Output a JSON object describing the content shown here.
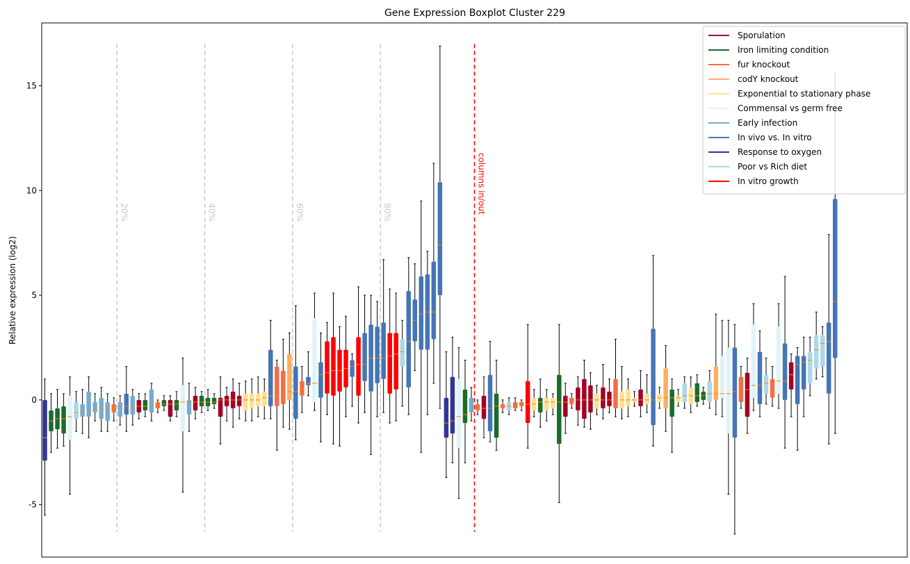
{
  "chart_data": {
    "type": "boxplot",
    "title": "Gene Expression Boxplot Cluster 229",
    "ylabel": "Relative expression (log2)",
    "xlabel": "",
    "ylim": [
      -7.5,
      18.0
    ],
    "yticks": [
      -5,
      0,
      5,
      10,
      15
    ],
    "grid": false,
    "legend_placement": "top-right",
    "legend": [
      {
        "label": "Sporulation",
        "color": "#a50026"
      },
      {
        "label": "Iron limiting condition",
        "color": "#1b6b2a"
      },
      {
        "label": "fur knockout",
        "color": "#f46d43"
      },
      {
        "label": "codY knockout",
        "color": "#fdae61"
      },
      {
        "label": "Exponential to stationary phase",
        "color": "#fee090"
      },
      {
        "label": "Commensal vs germ free",
        "color": "#e0f3f8"
      },
      {
        "label": "Early infection",
        "color": "#74add1"
      },
      {
        "label": "In vivo vs. In vitro",
        "color": "#4575b4"
      },
      {
        "label": "Response to oxygen",
        "color": "#313695"
      },
      {
        "label": "Poor vs Rich diet",
        "color": "#abd9e9"
      },
      {
        "label": "In vitro growth",
        "color": "#ff0000"
      }
    ],
    "percent_markers": [
      {
        "label": "20%",
        "box_index": 12
      },
      {
        "label": "40%",
        "box_index": 26
      },
      {
        "label": "60%",
        "box_index": 40
      },
      {
        "label": "80%",
        "box_index": 54
      }
    ],
    "columns_marker": {
      "label": "columns in/out",
      "box_index": 69,
      "color": "#ff0000"
    },
    "x_range": [
      0,
      138
    ],
    "boxes": [
      {
        "c": "#313695",
        "q1": -2.9,
        "med": -1.8,
        "q3": 0.0,
        "lo": -5.5,
        "hi": 1.0
      },
      {
        "c": "#1b6b2a",
        "q1": -1.5,
        "med": -1.0,
        "q3": -0.5,
        "lo": -2.5,
        "hi": 0.3
      },
      {
        "c": "#1b6b2a",
        "q1": -1.4,
        "med": -0.9,
        "q3": -0.4,
        "lo": -2.3,
        "hi": 0.5
      },
      {
        "c": "#1b6b2a",
        "q1": -1.6,
        "med": -0.9,
        "q3": -0.3,
        "lo": -2.2,
        "hi": 0.3
      },
      {
        "c": "#e0f3f8",
        "q1": -1.9,
        "med": -0.8,
        "q3": 0.2,
        "lo": -4.5,
        "hi": 1.1
      },
      {
        "c": "#abd9e9",
        "q1": -0.9,
        "med": -0.6,
        "q3": -0.1,
        "lo": -1.5,
        "hi": 0.4
      },
      {
        "c": "#74add1",
        "q1": -0.8,
        "med": -0.6,
        "q3": -0.2,
        "lo": -1.6,
        "hi": 0.5
      },
      {
        "c": "#74add1",
        "q1": -0.8,
        "med": -0.5,
        "q3": 0.4,
        "lo": -1.8,
        "hi": 1.1
      },
      {
        "c": "#74add1",
        "q1": -0.6,
        "med": -0.4,
        "q3": -0.1,
        "lo": -1.0,
        "hi": 0.3
      },
      {
        "c": "#74add1",
        "q1": -0.9,
        "med": -0.4,
        "q3": 0.1,
        "lo": -1.5,
        "hi": 0.6
      },
      {
        "c": "#74add1",
        "q1": -1.0,
        "med": -0.4,
        "q3": -0.1,
        "lo": -1.5,
        "hi": 0.3
      },
      {
        "c": "#f46d43",
        "q1": -0.6,
        "med": -0.4,
        "q3": -0.2,
        "lo": -1.0,
        "hi": 0.1
      },
      {
        "c": "#74add1",
        "q1": -0.8,
        "med": -0.3,
        "q3": -0.1,
        "lo": -1.2,
        "hi": 0.2
      },
      {
        "c": "#4575b4",
        "q1": -0.7,
        "med": -0.3,
        "q3": 0.3,
        "lo": -1.5,
        "hi": 1.6
      },
      {
        "c": "#74add1",
        "q1": -0.7,
        "med": -0.3,
        "q3": 0.2,
        "lo": -1.2,
        "hi": 0.5
      },
      {
        "c": "#a50026",
        "q1": -0.6,
        "med": -0.3,
        "q3": 0.0,
        "lo": -0.9,
        "hi": 0.3
      },
      {
        "c": "#1b6b2a",
        "q1": -0.5,
        "med": -0.3,
        "q3": 0.0,
        "lo": -0.8,
        "hi": 0.3
      },
      {
        "c": "#74add1",
        "q1": -0.6,
        "med": -0.2,
        "q3": 0.5,
        "lo": -1.0,
        "hi": 0.8
      },
      {
        "c": "#f46d43",
        "q1": -0.4,
        "med": -0.2,
        "q3": -0.1,
        "lo": -0.6,
        "hi": 0.0
      },
      {
        "c": "#1b6b2a",
        "q1": -0.3,
        "med": -0.2,
        "q3": 0.0,
        "lo": -0.5,
        "hi": 0.2
      },
      {
        "c": "#a50026",
        "q1": -0.8,
        "med": -0.2,
        "q3": 0.0,
        "lo": -1.0,
        "hi": 0.2
      },
      {
        "c": "#1b6b2a",
        "q1": -0.5,
        "med": -0.2,
        "q3": 0.0,
        "lo": -0.8,
        "hi": 0.4
      },
      {
        "c": "#e0f3f8",
        "q1": -1.5,
        "med": -0.1,
        "q3": 0.7,
        "lo": -4.4,
        "hi": 2.0
      },
      {
        "c": "#74add1",
        "q1": -0.7,
        "med": -0.1,
        "q3": 0.0,
        "lo": -1.5,
        "hi": 0.8
      },
      {
        "c": "#a50026",
        "q1": -0.5,
        "med": -0.1,
        "q3": 0.2,
        "lo": -0.9,
        "hi": 0.6
      },
      {
        "c": "#1b6b2a",
        "q1": -0.3,
        "med": -0.1,
        "q3": 0.2,
        "lo": -0.6,
        "hi": 0.4
      },
      {
        "c": "#1b6b2a",
        "q1": -0.3,
        "med": -0.1,
        "q3": 0.1,
        "lo": -0.5,
        "hi": 0.5
      },
      {
        "c": "#1b6b2a",
        "q1": -0.2,
        "med": -0.1,
        "q3": 0.1,
        "lo": -0.4,
        "hi": 0.3
      },
      {
        "c": "#a50026",
        "q1": -0.8,
        "med": 0.0,
        "q3": 0.1,
        "lo": -2.1,
        "hi": 1.1
      },
      {
        "c": "#a50026",
        "q1": -0.3,
        "med": 0.0,
        "q3": 0.2,
        "lo": -1.0,
        "hi": 0.6
      },
      {
        "c": "#a50026",
        "q1": -0.4,
        "med": 0.0,
        "q3": 0.4,
        "lo": -1.3,
        "hi": 1.0
      },
      {
        "c": "#a50026",
        "q1": -0.3,
        "med": 0.0,
        "q3": 0.2,
        "lo": -0.9,
        "hi": 0.8
      },
      {
        "c": "#fee090",
        "q1": -0.5,
        "med": 0.0,
        "q3": 0.3,
        "lo": -1.0,
        "hi": 0.9
      },
      {
        "c": "#fee090",
        "q1": -0.4,
        "med": 0.0,
        "q3": 0.3,
        "lo": -1.0,
        "hi": 1.0
      },
      {
        "c": "#fee090",
        "q1": -0.3,
        "med": 0.0,
        "q3": 0.3,
        "lo": -0.8,
        "hi": 1.1
      },
      {
        "c": "#fee090",
        "q1": -0.3,
        "med": 0.1,
        "q3": 0.4,
        "lo": -0.9,
        "hi": 1.0
      },
      {
        "c": "#4575b4",
        "q1": -0.3,
        "med": 0.2,
        "q3": 2.4,
        "lo": -0.9,
        "hi": 3.8
      },
      {
        "c": "#f46d43",
        "q1": -0.3,
        "med": 0.2,
        "q3": 1.6,
        "lo": -2.4,
        "hi": 1.9
      },
      {
        "c": "#f46d43",
        "q1": -0.2,
        "med": 0.3,
        "q3": 1.4,
        "lo": -1.3,
        "hi": 2.9
      },
      {
        "c": "#fdae61",
        "q1": 0.0,
        "med": 0.4,
        "q3": 2.2,
        "lo": -1.4,
        "hi": 3.2
      },
      {
        "c": "#4575b4",
        "q1": -0.9,
        "med": 0.4,
        "q3": 1.6,
        "lo": -1.9,
        "hi": 4.5
      },
      {
        "c": "#f46d43",
        "q1": 0.2,
        "med": 0.5,
        "q3": 0.9,
        "lo": -0.6,
        "hi": 1.6
      },
      {
        "c": "#4575b4",
        "q1": 0.7,
        "med": 0.8,
        "q3": 1.1,
        "lo": 0.2,
        "hi": 2.3
      },
      {
        "c": "#e0f3f8",
        "q1": -0.1,
        "med": 0.8,
        "q3": 3.9,
        "lo": -0.5,
        "hi": 5.1
      },
      {
        "c": "#4575b4",
        "q1": 0.1,
        "med": 1.2,
        "q3": 1.8,
        "lo": -2.0,
        "hi": 3.2
      },
      {
        "c": "#ff0000",
        "q1": 0.3,
        "med": 1.3,
        "q3": 2.8,
        "lo": -0.7,
        "hi": 3.7
      },
      {
        "c": "#ff0000",
        "q1": 0.2,
        "med": 1.4,
        "q3": 3.0,
        "lo": -2.1,
        "hi": 5.1
      },
      {
        "c": "#ff0000",
        "q1": 0.4,
        "med": 1.4,
        "q3": 2.4,
        "lo": -2.2,
        "hi": 3.5
      },
      {
        "c": "#ff0000",
        "q1": 0.6,
        "med": 1.5,
        "q3": 2.4,
        "lo": -0.8,
        "hi": 4.0
      },
      {
        "c": "#4575b4",
        "q1": 1.1,
        "med": 1.6,
        "q3": 1.9,
        "lo": -0.3,
        "hi": 2.2
      },
      {
        "c": "#ff0000",
        "q1": 0.2,
        "med": 1.7,
        "q3": 3.0,
        "lo": -1.1,
        "hi": 5.4
      },
      {
        "c": "#4575b4",
        "q1": 0.9,
        "med": 1.7,
        "q3": 3.2,
        "lo": -0.6,
        "hi": 5.0
      },
      {
        "c": "#4575b4",
        "q1": 0.4,
        "med": 2.0,
        "q3": 3.6,
        "lo": -2.6,
        "hi": 5.0
      },
      {
        "c": "#4575b4",
        "q1": 0.8,
        "med": 2.0,
        "q3": 3.5,
        "lo": -0.8,
        "hi": 4.7
      },
      {
        "c": "#4575b4",
        "q1": 1.0,
        "med": 2.0,
        "q3": 3.7,
        "lo": -0.6,
        "hi": 6.7
      },
      {
        "c": "#ff0000",
        "q1": 0.3,
        "med": 2.1,
        "q3": 3.2,
        "lo": -1.1,
        "hi": 5.3
      },
      {
        "c": "#ff0000",
        "q1": 0.5,
        "med": 2.2,
        "q3": 3.2,
        "lo": -1.0,
        "hi": 5.1
      },
      {
        "c": "#abd9e9",
        "q1": 1.6,
        "med": 2.3,
        "q3": 2.9,
        "lo": -0.3,
        "hi": 3.8
      },
      {
        "c": "#4575b4",
        "q1": 0.6,
        "med": 2.8,
        "q3": 5.2,
        "lo": -0.7,
        "hi": 6.8
      },
      {
        "c": "#4575b4",
        "q1": 2.8,
        "med": 3.8,
        "q3": 4.8,
        "lo": 1.4,
        "hi": 6.5
      },
      {
        "c": "#4575b4",
        "q1": 2.4,
        "med": 4.1,
        "q3": 5.9,
        "lo": -2.5,
        "hi": 9.5
      },
      {
        "c": "#4575b4",
        "q1": 2.4,
        "med": 4.2,
        "q3": 6.0,
        "lo": -0.7,
        "hi": 7.1
      },
      {
        "c": "#4575b4",
        "q1": 2.9,
        "med": 4.2,
        "q3": 6.6,
        "lo": 0.8,
        "hi": 11.3
      },
      {
        "c": "#4575b4",
        "q1": 5.0,
        "med": 7.4,
        "q3": 10.4,
        "lo": -0.4,
        "hi": 16.9
      },
      {
        "c": "#313695",
        "q1": -1.8,
        "med": -1.1,
        "q3": 0.1,
        "lo": -3.7,
        "hi": 2.3
      },
      {
        "c": "#313695",
        "q1": -1.6,
        "med": -1.0,
        "q3": 1.1,
        "lo": -3.0,
        "hi": 3.0
      },
      {
        "c": "#e0f3f8",
        "q1": -2.3,
        "med": -0.8,
        "q3": 1.0,
        "lo": -4.7,
        "hi": 2.5
      },
      {
        "c": "#1b6b2a",
        "q1": -1.1,
        "med": -0.7,
        "q3": 0.5,
        "lo": -3.0,
        "hi": 1.9
      },
      {
        "c": "#74add1",
        "q1": -0.6,
        "med": -0.5,
        "q3": 0.1,
        "lo": -1.0,
        "hi": 0.6
      },
      {
        "c": "#f46d43",
        "q1": -0.5,
        "med": -0.4,
        "q3": -0.2,
        "lo": -0.7,
        "hi": 0.0
      },
      {
        "c": "#a50026",
        "q1": -0.9,
        "med": -0.4,
        "q3": 0.2,
        "lo": -1.8,
        "hi": 1.1
      },
      {
        "c": "#4575b4",
        "q1": -1.5,
        "med": -0.4,
        "q3": 1.2,
        "lo": -2.0,
        "hi": 2.8
      },
      {
        "c": "#1b6b2a",
        "q1": -1.8,
        "med": -0.3,
        "q3": 0.3,
        "lo": -2.4,
        "hi": 1.9
      },
      {
        "c": "#f46d43",
        "q1": -0.4,
        "med": -0.3,
        "q3": -0.2,
        "lo": -0.6,
        "hi": 0.0
      },
      {
        "c": "#abd9e9",
        "q1": -0.5,
        "med": -0.3,
        "q3": -0.1,
        "lo": -0.7,
        "hi": 0.1
      },
      {
        "c": "#f46d43",
        "q1": -0.4,
        "med": -0.3,
        "q3": -0.1,
        "lo": -0.5,
        "hi": 0.1
      },
      {
        "c": "#f46d43",
        "q1": -0.3,
        "med": -0.2,
        "q3": -0.1,
        "lo": -0.5,
        "hi": 0.0
      },
      {
        "c": "#ff0000",
        "q1": -1.1,
        "med": -0.2,
        "q3": 0.9,
        "lo": -2.3,
        "hi": 3.6
      },
      {
        "c": "#fee090",
        "q1": -0.5,
        "med": -0.2,
        "q3": 0.1,
        "lo": -0.8,
        "hi": 0.5
      },
      {
        "c": "#1b6b2a",
        "q1": -0.6,
        "med": -0.1,
        "q3": 0.1,
        "lo": -1.3,
        "hi": 1.0
      },
      {
        "c": "#fee090",
        "q1": -0.5,
        "med": -0.1,
        "q3": 0.1,
        "lo": -1.0,
        "hi": 0.5
      },
      {
        "c": "#fee090",
        "q1": -0.4,
        "med": -0.1,
        "q3": 0.1,
        "lo": -0.7,
        "hi": 0.3
      },
      {
        "c": "#1b6b2a",
        "q1": -2.1,
        "med": -0.1,
        "q3": 1.2,
        "lo": -4.9,
        "hi": 3.6
      },
      {
        "c": "#a50026",
        "q1": -0.8,
        "med": -0.1,
        "q3": 0.2,
        "lo": -1.6,
        "hi": 0.8
      },
      {
        "c": "#f46d43",
        "q1": -0.2,
        "med": 0.0,
        "q3": 0.1,
        "lo": -0.4,
        "hi": 0.3
      },
      {
        "c": "#a50026",
        "q1": -0.5,
        "med": 0.0,
        "q3": 0.6,
        "lo": -1.2,
        "hi": 1.1
      },
      {
        "c": "#a50026",
        "q1": -0.9,
        "med": 0.0,
        "q3": 1.0,
        "lo": -1.3,
        "hi": 1.9
      },
      {
        "c": "#a50026",
        "q1": -0.6,
        "med": 0.0,
        "q3": 0.7,
        "lo": -1.4,
        "hi": 1.3
      },
      {
        "c": "#fee090",
        "q1": -0.4,
        "med": 0.0,
        "q3": 0.3,
        "lo": -0.7,
        "hi": 0.7
      },
      {
        "c": "#a50026",
        "q1": -0.4,
        "med": 0.0,
        "q3": 0.6,
        "lo": -0.9,
        "hi": 1.7
      },
      {
        "c": "#a50026",
        "q1": -0.3,
        "med": 0.0,
        "q3": 0.4,
        "lo": -0.6,
        "hi": 1.0
      },
      {
        "c": "#f46d43",
        "q1": -0.4,
        "med": 0.0,
        "q3": 1.0,
        "lo": -0.8,
        "hi": 2.9
      },
      {
        "c": "#fee090",
        "q1": -0.4,
        "med": 0.0,
        "q3": 0.4,
        "lo": -0.9,
        "hi": 1.6
      },
      {
        "c": "#fee090",
        "q1": -0.3,
        "med": 0.0,
        "q3": 0.5,
        "lo": -0.8,
        "hi": 1.0
      },
      {
        "c": "#fee090",
        "q1": -0.1,
        "med": 0.0,
        "q3": 0.1,
        "lo": -0.3,
        "hi": 0.4
      },
      {
        "c": "#a50026",
        "q1": -0.3,
        "med": 0.0,
        "q3": 0.5,
        "lo": -0.8,
        "hi": 1.4
      },
      {
        "c": "#fee090",
        "q1": -0.2,
        "med": 0.0,
        "q3": 0.3,
        "lo": -0.6,
        "hi": 1.2
      },
      {
        "c": "#4575b4",
        "q1": -1.2,
        "med": 0.0,
        "q3": 3.4,
        "lo": -2.2,
        "hi": 6.9
      },
      {
        "c": "#fee090",
        "q1": -0.1,
        "med": 0.1,
        "q3": 0.3,
        "lo": -0.4,
        "hi": 0.6
      },
      {
        "c": "#fdae61",
        "q1": -0.4,
        "med": 0.1,
        "q3": 1.5,
        "lo": -1.5,
        "hi": 2.6
      },
      {
        "c": "#1b6b2a",
        "q1": -0.8,
        "med": 0.1,
        "q3": 0.5,
        "lo": -2.5,
        "hi": 1.0
      },
      {
        "c": "#fee090",
        "q1": -0.1,
        "med": 0.1,
        "q3": 0.2,
        "lo": -0.3,
        "hi": 0.5
      },
      {
        "c": "#abd9e9",
        "q1": -0.1,
        "med": 0.2,
        "q3": 0.8,
        "lo": -0.4,
        "hi": 1.1
      },
      {
        "c": "#fee090",
        "q1": -0.2,
        "med": 0.2,
        "q3": 0.6,
        "lo": -0.6,
        "hi": 1.1
      },
      {
        "c": "#1b6b2a",
        "q1": -0.1,
        "med": 0.2,
        "q3": 0.8,
        "lo": -0.3,
        "hi": 1.2
      },
      {
        "c": "#1b6b2a",
        "q1": 0.0,
        "med": 0.2,
        "q3": 0.4,
        "lo": -0.2,
        "hi": 0.6
      },
      {
        "c": "#abd9e9",
        "q1": -0.1,
        "med": 0.3,
        "q3": 0.9,
        "lo": -0.4,
        "hi": 1.4
      },
      {
        "c": "#fdae61",
        "q1": 0.0,
        "med": 0.3,
        "q3": 1.6,
        "lo": -0.7,
        "hi": 4.1
      },
      {
        "c": "#e0f3f8",
        "q1": 0.1,
        "med": 0.3,
        "q3": 2.1,
        "lo": -0.8,
        "hi": 3.8
      },
      {
        "c": "#e0f3f8",
        "q1": -1.6,
        "med": 0.3,
        "q3": 2.5,
        "lo": -4.5,
        "hi": 3.8
      },
      {
        "c": "#4575b4",
        "q1": -1.8,
        "med": 0.4,
        "q3": 2.5,
        "lo": -6.4,
        "hi": 3.6
      },
      {
        "c": "#f46d43",
        "q1": -0.1,
        "med": 0.4,
        "q3": 1.1,
        "lo": -0.4,
        "hi": 1.6
      },
      {
        "c": "#a50026",
        "q1": -0.8,
        "med": 0.5,
        "q3": 1.3,
        "lo": -1.6,
        "hi": 2.0
      },
      {
        "c": "#e0f3f8",
        "q1": 0.1,
        "med": 0.7,
        "q3": 3.6,
        "lo": -0.5,
        "hi": 4.6
      },
      {
        "c": "#4575b4",
        "q1": -0.2,
        "med": 0.7,
        "q3": 2.3,
        "lo": -0.8,
        "hi": 3.3
      },
      {
        "c": "#abd9e9",
        "q1": 0.3,
        "med": 0.8,
        "q3": 1.2,
        "lo": -0.2,
        "hi": 2.0
      },
      {
        "c": "#f46d43",
        "q1": 0.1,
        "med": 0.8,
        "q3": 1.0,
        "lo": -0.3,
        "hi": 1.6
      },
      {
        "c": "#e0f3f8",
        "q1": 0.3,
        "med": 0.9,
        "q3": 3.5,
        "lo": -0.4,
        "hi": 4.6
      },
      {
        "c": "#4575b4",
        "q1": 0.0,
        "med": 0.9,
        "q3": 2.7,
        "lo": -2.3,
        "hi": 5.9
      },
      {
        "c": "#a50026",
        "q1": 0.5,
        "med": 1.2,
        "q3": 1.8,
        "lo": -0.8,
        "hi": 2.2
      },
      {
        "c": "#4575b4",
        "q1": -0.2,
        "med": 1.7,
        "q3": 2.1,
        "lo": -2.4,
        "hi": 2.5
      },
      {
        "c": "#4575b4",
        "q1": 0.5,
        "med": 1.8,
        "q3": 2.1,
        "lo": -0.8,
        "hi": 3.0
      },
      {
        "c": "#abd9e9",
        "q1": 0.8,
        "med": 1.9,
        "q3": 2.3,
        "lo": 0.2,
        "hi": 3.0
      },
      {
        "c": "#abd9e9",
        "q1": 1.5,
        "med": 2.4,
        "q3": 3.1,
        "lo": 1.0,
        "hi": 4.2
      },
      {
        "c": "#abd9e9",
        "q1": 1.6,
        "med": 2.7,
        "q3": 3.1,
        "lo": 1.1,
        "hi": 3.5
      },
      {
        "c": "#4575b4",
        "q1": 0.3,
        "med": 2.8,
        "q3": 3.7,
        "lo": -2.1,
        "hi": 7.9
      },
      {
        "c": "#4575b4",
        "q1": 2.0,
        "med": 4.7,
        "q3": 9.6,
        "lo": -1.6,
        "hi": 15.6
      }
    ]
  }
}
